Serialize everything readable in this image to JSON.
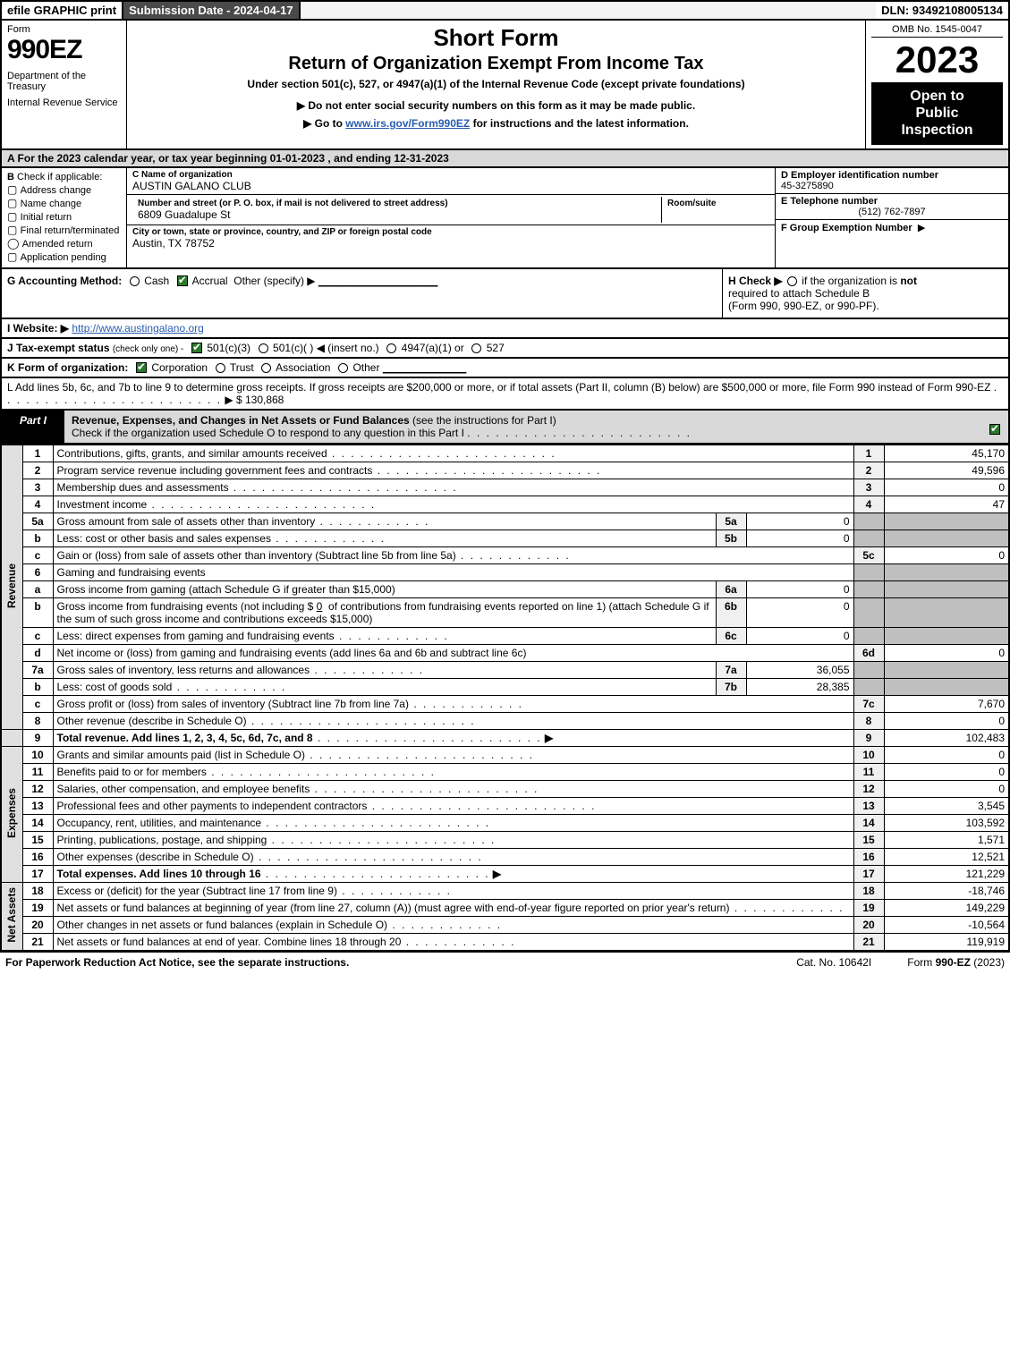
{
  "topbar": {
    "efile": "efile GRAPHIC print",
    "submission": "Submission Date - 2024-04-17",
    "dln": "DLN: 93492108005134"
  },
  "header": {
    "form_label": "Form",
    "form_number": "990EZ",
    "dept1": "Department of the Treasury",
    "dept2": "Internal Revenue Service",
    "short_form": "Short Form",
    "title": "Return of Organization Exempt From Income Tax",
    "under": "Under section 501(c), 527, or 4947(a)(1) of the Internal Revenue Code (except private foundations)",
    "pub1_prefix": "▶ Do not enter social security numbers on this form as it may be made public.",
    "pub2_prefix": "▶ Go to ",
    "pub2_link": "www.irs.gov/Form990EZ",
    "pub2_suffix": " for instructions and the latest information.",
    "omb": "OMB No. 1545-0047",
    "year": "2023",
    "open1": "Open to",
    "open2": "Public",
    "open3": "Inspection"
  },
  "rowA": {
    "text_prefix": "A  For the 2023 calendar year, or tax year beginning ",
    "begin": "01-01-2023",
    "mid": " , and ending ",
    "end": "12-31-2023"
  },
  "sectionB": {
    "label": "B",
    "title": "Check if applicable:",
    "items": [
      "Address change",
      "Name change",
      "Initial return",
      "Final return/terminated",
      "Amended return",
      "Application pending"
    ]
  },
  "sectionC": {
    "name_label": "C Name of organization",
    "name": "AUSTIN GALANO CLUB",
    "street_label": "Number and street (or P. O. box, if mail is not delivered to street address)",
    "street": "6809 Guadalupe St",
    "room_label": "Room/suite",
    "room": "",
    "city_label": "City or town, state or province, country, and ZIP or foreign postal code",
    "city": "Austin, TX  78752"
  },
  "sectionD": {
    "label": "D Employer identification number",
    "value": "45-3275890"
  },
  "sectionE": {
    "label": "E Telephone number",
    "value": "(512) 762-7897"
  },
  "sectionF": {
    "label": "F Group Exemption Number",
    "arrow": "▶",
    "value": ""
  },
  "sectionG": {
    "label": "G Accounting Method:",
    "cash": "Cash",
    "accrual": "Accrual",
    "other": "Other (specify) ▶",
    "line": "____________________"
  },
  "sectionH": {
    "text1": "H  Check ▶",
    "text2": " if the organization is ",
    "not": "not",
    "text3": " required to attach Schedule B",
    "text4": "(Form 990, 990-EZ, or 990-PF)."
  },
  "sectionI": {
    "label": "I Website: ▶",
    "url": "http://www.austingalano.org"
  },
  "sectionJ": {
    "label": "J Tax-exempt status",
    "small": "(check only one) -",
    "opt1": "501(c)(3)",
    "opt2": "501(c)(  )",
    "insert": "◀ (insert no.)",
    "opt3": "4947(a)(1) or",
    "opt4": "527"
  },
  "sectionK": {
    "label": "K Form of organization:",
    "corp": "Corporation",
    "trust": "Trust",
    "assoc": "Association",
    "other": "Other",
    "line": "______________"
  },
  "sectionL": {
    "text": "L Add lines 5b, 6c, and 7b to line 9 to determine gross receipts. If gross receipts are $200,000 or more, or if total assets (Part II, column (B) below) are $500,000 or more, file Form 990 instead of Form 990-EZ",
    "arrow": "▶ $",
    "value": "130,868"
  },
  "partI": {
    "tab": "Part I",
    "title": "Revenue, Expenses, and Changes in Net Assets or Fund Balances",
    "paren": "(see the instructions for Part I)",
    "check_line": "Check if the organization used Schedule O to respond to any question in this Part I"
  },
  "sidelabels": {
    "revenue": "Revenue",
    "expenses": "Expenses",
    "netassets": "Net Assets"
  },
  "lines": {
    "l1": {
      "n": "1",
      "d": "Contributions, gifts, grants, and similar amounts received",
      "c": "1",
      "v": "45,170"
    },
    "l2": {
      "n": "2",
      "d": "Program service revenue including government fees and contracts",
      "c": "2",
      "v": "49,596"
    },
    "l3": {
      "n": "3",
      "d": "Membership dues and assessments",
      "c": "3",
      "v": "0"
    },
    "l4": {
      "n": "4",
      "d": "Investment income",
      "c": "4",
      "v": "47"
    },
    "l5a": {
      "n": "5a",
      "d": "Gross amount from sale of assets other than inventory",
      "sl": "5a",
      "sv": "0"
    },
    "l5b": {
      "n": "b",
      "d": "Less: cost or other basis and sales expenses",
      "sl": "5b",
      "sv": "0"
    },
    "l5c": {
      "n": "c",
      "d": "Gain or (loss) from sale of assets other than inventory (Subtract line 5b from line 5a)",
      "c": "5c",
      "v": "0"
    },
    "l6": {
      "n": "6",
      "d": "Gaming and fundraising events"
    },
    "l6a": {
      "n": "a",
      "d": "Gross income from gaming (attach Schedule G if greater than $15,000)",
      "sl": "6a",
      "sv": "0"
    },
    "l6b": {
      "n": "b",
      "d1": "Gross income from fundraising events (not including $",
      "fill": "0",
      "d2": "of contributions from fundraising events reported on line 1) (attach Schedule G if the sum of such gross income and contributions exceeds $15,000)",
      "sl": "6b",
      "sv": "0"
    },
    "l6c": {
      "n": "c",
      "d": "Less: direct expenses from gaming and fundraising events",
      "sl": "6c",
      "sv": "0"
    },
    "l6d": {
      "n": "d",
      "d": "Net income or (loss) from gaming and fundraising events (add lines 6a and 6b and subtract line 6c)",
      "c": "6d",
      "v": "0"
    },
    "l7a": {
      "n": "7a",
      "d": "Gross sales of inventory, less returns and allowances",
      "sl": "7a",
      "sv": "36,055"
    },
    "l7b": {
      "n": "b",
      "d": "Less: cost of goods sold",
      "sl": "7b",
      "sv": "28,385"
    },
    "l7c": {
      "n": "c",
      "d": "Gross profit or (loss) from sales of inventory (Subtract line 7b from line 7a)",
      "c": "7c",
      "v": "7,670"
    },
    "l8": {
      "n": "8",
      "d": "Other revenue (describe in Schedule O)",
      "c": "8",
      "v": "0"
    },
    "l9": {
      "n": "9",
      "d": "Total revenue. Add lines 1, 2, 3, 4, 5c, 6d, 7c, and 8",
      "c": "9",
      "v": "102,483",
      "bold": true
    },
    "l10": {
      "n": "10",
      "d": "Grants and similar amounts paid (list in Schedule O)",
      "c": "10",
      "v": "0"
    },
    "l11": {
      "n": "11",
      "d": "Benefits paid to or for members",
      "c": "11",
      "v": "0"
    },
    "l12": {
      "n": "12",
      "d": "Salaries, other compensation, and employee benefits",
      "c": "12",
      "v": "0"
    },
    "l13": {
      "n": "13",
      "d": "Professional fees and other payments to independent contractors",
      "c": "13",
      "v": "3,545"
    },
    "l14": {
      "n": "14",
      "d": "Occupancy, rent, utilities, and maintenance",
      "c": "14",
      "v": "103,592"
    },
    "l15": {
      "n": "15",
      "d": "Printing, publications, postage, and shipping",
      "c": "15",
      "v": "1,571"
    },
    "l16": {
      "n": "16",
      "d": "Other expenses (describe in Schedule O)",
      "c": "16",
      "v": "12,521"
    },
    "l17": {
      "n": "17",
      "d": "Total expenses. Add lines 10 through 16",
      "c": "17",
      "v": "121,229",
      "bold": true
    },
    "l18": {
      "n": "18",
      "d": "Excess or (deficit) for the year (Subtract line 17 from line 9)",
      "c": "18",
      "v": "-18,746"
    },
    "l19": {
      "n": "19",
      "d": "Net assets or fund balances at beginning of year (from line 27, column (A)) (must agree with end-of-year figure reported on prior year's return)",
      "c": "19",
      "v": "149,229"
    },
    "l20": {
      "n": "20",
      "d": "Other changes in net assets or fund balances (explain in Schedule O)",
      "c": "20",
      "v": "-10,564"
    },
    "l21": {
      "n": "21",
      "d": "Net assets or fund balances at end of year. Combine lines 18 through 20",
      "c": "21",
      "v": "119,919"
    }
  },
  "footer": {
    "left": "For Paperwork Reduction Act Notice, see the separate instructions.",
    "center": "Cat. No. 10642I",
    "right_prefix": "Form ",
    "right_form": "990-EZ",
    "right_suffix": " (2023)"
  },
  "colors": {
    "black": "#000000",
    "grey_header": "#d9d9d9",
    "grey_shade": "#bfbfbf",
    "link": "#2a5db0",
    "check_green": "#2a7a2a"
  }
}
